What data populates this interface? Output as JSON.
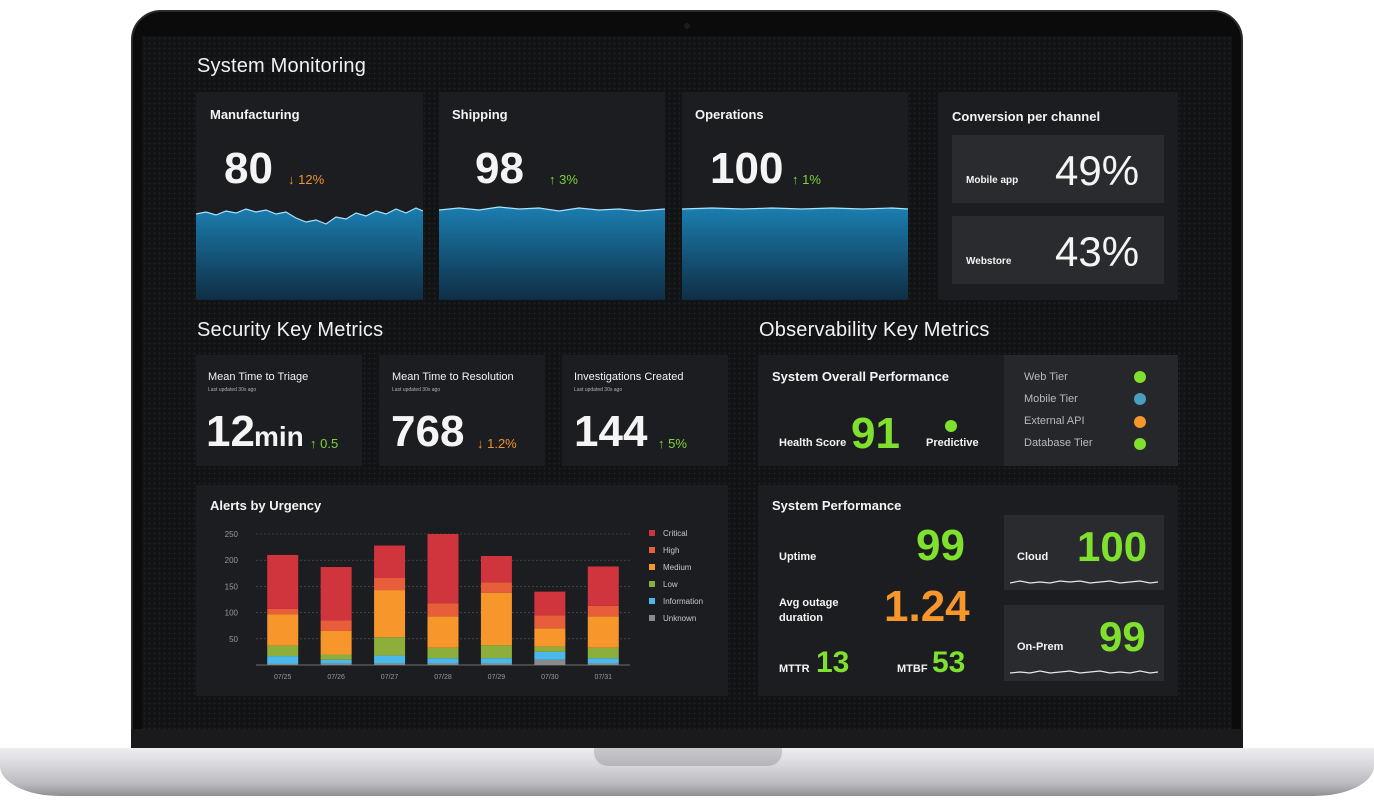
{
  "system_monitoring": {
    "title": "System Monitoring",
    "cards": [
      {
        "title": "Manufacturing",
        "value": "80",
        "delta": "↓ 12%",
        "direction": "down"
      },
      {
        "title": "Shipping",
        "value": "98",
        "delta": "↑ 3%",
        "direction": "up"
      },
      {
        "title": "Operations",
        "value": "100",
        "delta": "↑ 1%",
        "direction": "up"
      }
    ],
    "conversion": {
      "title": "Conversion per channel",
      "items": [
        {
          "label": "Mobile app",
          "value": "49%"
        },
        {
          "label": "Webstore",
          "value": "43%"
        }
      ]
    }
  },
  "security": {
    "title": "Security Key Metrics",
    "cards": [
      {
        "title": "Mean Time to Triage",
        "updated": "Last updated 30s ago",
        "value": "12",
        "unit": "min",
        "delta": "↑ 0.5",
        "direction": "up"
      },
      {
        "title": "Mean Time to Resolution",
        "updated": "Last updated 30s ago",
        "value": "768",
        "unit": "",
        "delta": "↓ 1.2%",
        "direction": "down"
      },
      {
        "title": "Investigations Created",
        "updated": "Last updated 30s ago",
        "value": "144",
        "unit": "",
        "delta": "↑ 5%",
        "direction": "up"
      }
    ]
  },
  "observability": {
    "title": "Observability Key Metrics",
    "overall": {
      "title": "System Overall Performance",
      "health_label": "Health Score",
      "health_value": "91",
      "predictive_label": "Predictive",
      "tiers": [
        {
          "label": "Web Tier",
          "color": "#7fe12e"
        },
        {
          "label": "Mobile Tier",
          "color": "#4a9fbf"
        },
        {
          "label": "External API",
          "color": "#f7962a"
        },
        {
          "label": "Database Tier",
          "color": "#7fe12e"
        }
      ]
    },
    "performance": {
      "title": "System Performance",
      "uptime_label": "Uptime",
      "uptime_value": "99",
      "outage_label_1": "Avg outage",
      "outage_label_2": "duration",
      "outage_value": "1.24",
      "mttr_label": "MTTR",
      "mttr_value": "13",
      "mtbf_label": "MTBF",
      "mtbf_value": "53",
      "cloud_label": "Cloud",
      "cloud_value": "100",
      "onprem_label": "On-Prem",
      "onprem_value": "99"
    }
  },
  "alerts": {
    "title": "Alerts by Urgency"
  },
  "chart_data": {
    "type": "bar",
    "stacked": true,
    "title": "Alerts by Urgency",
    "categories": [
      "07/25",
      "07/26",
      "07/27",
      "07/28",
      "07/29",
      "07/30",
      "07/31"
    ],
    "yticks": [
      50,
      100,
      150,
      200,
      250
    ],
    "ylim": [
      0,
      250
    ],
    "grid": true,
    "legend_position": "right",
    "series": [
      {
        "name": "Unknown",
        "color": "#8a8a8a",
        "values": [
          2,
          3,
          3,
          3,
          3,
          10,
          3
        ]
      },
      {
        "name": "Information",
        "color": "#4ab8e8",
        "values": [
          15,
          7,
          15,
          10,
          10,
          15,
          10
        ]
      },
      {
        "name": "Low",
        "color": "#8dae3a",
        "values": [
          20,
          10,
          35,
          20,
          25,
          10,
          20
        ]
      },
      {
        "name": "Medium",
        "color": "#f7962a",
        "values": [
          60,
          45,
          90,
          60,
          100,
          35,
          60
        ]
      },
      {
        "name": "High",
        "color": "#e85d3a",
        "values": [
          10,
          20,
          23,
          25,
          20,
          25,
          20
        ]
      },
      {
        "name": "Critical",
        "color": "#d0343d",
        "values": [
          103,
          102,
          62,
          132,
          50,
          45,
          75
        ]
      }
    ],
    "legend_order": [
      "Critical",
      "High",
      "Medium",
      "Low",
      "Information",
      "Unknown"
    ]
  }
}
